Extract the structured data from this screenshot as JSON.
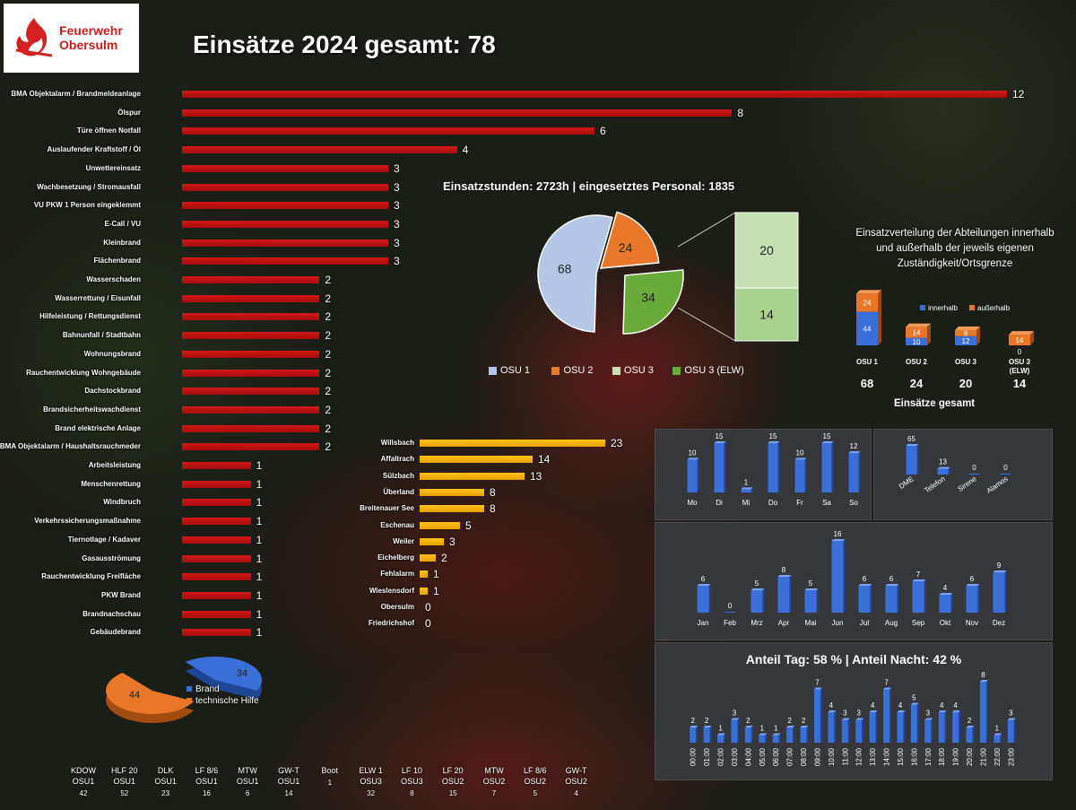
{
  "logo": {
    "text_line1": "Feuerwehr",
    "text_line2": "Obersulm"
  },
  "title": "Einsätze 2024 gesamt: 78",
  "summary": "Einsatzstunden: 2723h | eingesetztes Personal: 1835",
  "distribution_title": "Einsatzverteilung der Abteilungen innerhalb und außerhalb der jeweils eigenen Zuständigkeit/Ortsgrenze",
  "day_night": "Anteil Tag: 58 % | Anteil Nacht: 42 %",
  "einsaetze_gesamt_label": "Einsätze gesamt",
  "colors": {
    "red": "#c01212",
    "yellow": "#f5b000",
    "blue": "#3a6fd8",
    "orange": "#e8772a",
    "light_blue": "#b4c7e7",
    "light_green": "#c5e0b4",
    "green": "#6aaa3a"
  },
  "chart_data": [
    {
      "type": "bar",
      "orientation": "horizontal",
      "title": "",
      "categories": [
        "BMA Objektalarm / Brandmeldeanlage",
        "Ölspur",
        "Türe öffnen Notfall",
        "Auslaufender Kraftstoff / Öl",
        "Unwettereinsatz",
        "Wachbesetzung / Stromausfall",
        "VU PKW 1 Person eingeklemmt",
        "E-Call / VU",
        "Kleinbrand",
        "Flächenbrand",
        "Wasserschaden",
        "Wasserrettung / Eisunfall",
        "Hilfeleistung / Rettungsdienst",
        "Bahnunfall / Stadtbahn",
        "Wohnungsbrand",
        "Rauchentwicklung Wohngebäude",
        "Dachstockbrand",
        "Brandsicherheitswachdienst",
        "Brand elektrische Anlage",
        "BMA Objektalarm / Haushaltsrauchmeder",
        "Arbeitsleistung",
        "Menschenrettung",
        "Windbruch",
        "Verkehrssicherungsmaßnahme",
        "Tiernotlage / Kadaver",
        "Gasausströmung",
        "Rauchentwicklung Freifläche",
        "PKW Brand",
        "Brandnachschau",
        "Gebäudebrand"
      ],
      "values": [
        12,
        8,
        6,
        4,
        3,
        3,
        3,
        3,
        3,
        3,
        2,
        2,
        2,
        2,
        2,
        2,
        2,
        2,
        2,
        2,
        1,
        1,
        1,
        1,
        1,
        1,
        1,
        1,
        1,
        1
      ],
      "xlim": [
        0,
        12
      ]
    },
    {
      "type": "bar",
      "orientation": "horizontal",
      "categories": [
        "Willsbach",
        "Affaltrach",
        "Sülzbach",
        "Überland",
        "Breitenauer See",
        "Eschenau",
        "Weiler",
        "Eichelberg",
        "Fehlalarm",
        "Wieslensdorf",
        "Obersulm",
        "Friedrichshof"
      ],
      "values": [
        23,
        14,
        13,
        8,
        8,
        5,
        3,
        2,
        1,
        1,
        0,
        0
      ],
      "xlim": [
        0,
        23
      ]
    },
    {
      "type": "pie",
      "categories": [
        "OSU 1",
        "OSU 2",
        "OSU 3",
        "OSU 3 (ELW)"
      ],
      "values": [
        68,
        24,
        20,
        14
      ],
      "note_values_shown": [
        "68",
        "24",
        "34"
      ],
      "breakout": {
        "total": 34,
        "parts": [
          20,
          14
        ]
      }
    },
    {
      "type": "bar",
      "stacked": true,
      "categories": [
        "OSU 1",
        "OSU 2",
        "OSU 3",
        "OSU 3 (ELW)"
      ],
      "series": [
        {
          "name": "innerhalb",
          "values": [
            44,
            10,
            12,
            0
          ]
        },
        {
          "name": "außerhalb",
          "values": [
            24,
            14,
            8,
            14
          ]
        }
      ],
      "totals": [
        68,
        24,
        20,
        14
      ]
    },
    {
      "type": "bar",
      "categories": [
        "Mo",
        "Di",
        "Mi",
        "Do",
        "Fr",
        "Sa",
        "So"
      ],
      "values": [
        10,
        15,
        1,
        15,
        10,
        15,
        12
      ]
    },
    {
      "type": "bar",
      "categories": [
        "DME",
        "Telefon",
        "Sirene",
        "Alamos"
      ],
      "values": [
        65,
        13,
        0,
        0
      ]
    },
    {
      "type": "bar",
      "categories": [
        "Jan",
        "Feb",
        "Mrz",
        "Apr",
        "Mai",
        "Jun",
        "Jul",
        "Aug",
        "Sep",
        "Okt",
        "Nov",
        "Dez"
      ],
      "values": [
        6,
        0,
        5,
        8,
        5,
        16,
        6,
        6,
        7,
        4,
        6,
        9
      ]
    },
    {
      "type": "bar",
      "title": "Anteil Tag: 58 % | Anteil Nacht: 42 %",
      "categories": [
        "00:00",
        "01:00",
        "02:00",
        "03:00",
        "04:00",
        "05:00",
        "06:00",
        "07:00",
        "08:00",
        "09:00",
        "10:00",
        "11:00",
        "12:00",
        "13:00",
        "14:00",
        "15:00",
        "16:00",
        "17:00",
        "18:00",
        "19:00",
        "20:00",
        "21:00",
        "22:00",
        "23:00"
      ],
      "values": [
        2,
        2,
        1,
        3,
        2,
        1,
        1,
        2,
        2,
        7,
        4,
        3,
        3,
        4,
        7,
        4,
        5,
        3,
        4,
        4,
        2,
        8,
        1,
        3
      ]
    },
    {
      "type": "pie",
      "categories": [
        "Brand",
        "technische Hilfe"
      ],
      "values": [
        34,
        44
      ]
    },
    {
      "type": "table",
      "columns": [
        {
          "name": "KDOW",
          "unit": "OSU1",
          "value": "42"
        },
        {
          "name": "HLF 20",
          "unit": "OSU1",
          "value": "52"
        },
        {
          "name": "DLK",
          "unit": "OSU1",
          "value": "23"
        },
        {
          "name": "LF 8/6",
          "unit": "OSU1",
          "value": "16"
        },
        {
          "name": "MTW",
          "unit": "OSU1",
          "value": "6"
        },
        {
          "name": "GW-T",
          "unit": "OSU1",
          "value": "14"
        },
        {
          "name": "Boot",
          "unit": "",
          "value": "1"
        },
        {
          "name": "ELW 1",
          "unit": "OSU3",
          "value": "32"
        },
        {
          "name": "LF 10",
          "unit": "OSU3",
          "value": "8"
        },
        {
          "name": "LF 20",
          "unit": "OSU2",
          "value": "15"
        },
        {
          "name": "MTW",
          "unit": "OSU2",
          "value": "7"
        },
        {
          "name": "LF 8/6",
          "unit": "OSU2",
          "value": "5"
        },
        {
          "name": "GW-T",
          "unit": "OSU2",
          "value": "4"
        }
      ]
    }
  ]
}
